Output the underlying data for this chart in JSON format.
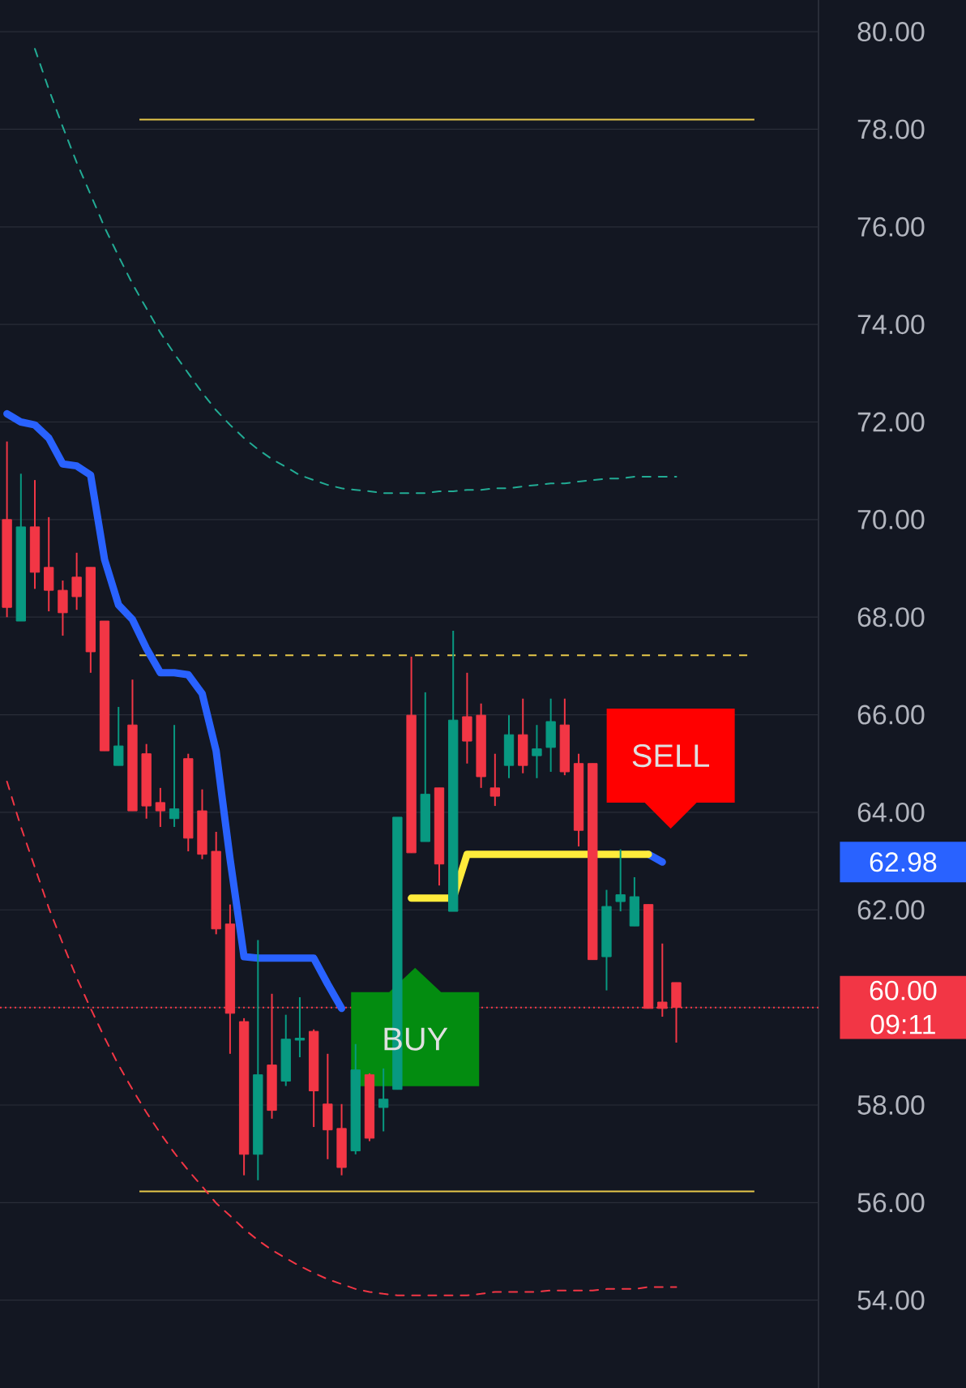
{
  "chart_data": {
    "type": "candlestick",
    "categories": [
      null,
      null,
      null,
      null,
      null,
      null,
      null,
      null,
      null,
      null,
      null,
      null,
      null,
      null,
      null,
      null,
      null,
      null,
      null,
      null,
      null,
      null,
      null,
      null,
      null,
      null,
      null,
      null,
      null,
      null,
      null,
      null,
      null,
      null,
      null,
      null,
      null,
      null,
      null,
      null,
      null,
      null,
      null,
      null,
      null,
      null,
      null,
      null,
      null
    ],
    "ohlc": [
      [
        70.0,
        71.6,
        68.0,
        68.2
      ],
      [
        67.92,
        70.94,
        67.92,
        69.85
      ],
      [
        69.85,
        70.81,
        68.58,
        68.92
      ],
      [
        69.02,
        70.05,
        68.12,
        68.55
      ],
      [
        68.55,
        68.75,
        67.62,
        68.09
      ],
      [
        68.82,
        69.32,
        68.15,
        68.42
      ],
      [
        69.02,
        69.02,
        66.86,
        67.29
      ],
      [
        67.92,
        67.92,
        65.26,
        65.26
      ],
      [
        64.96,
        66.16,
        64.96,
        65.36
      ],
      [
        65.79,
        66.72,
        64.03,
        64.03
      ],
      [
        65.2,
        65.4,
        63.87,
        64.13
      ],
      [
        64.2,
        64.5,
        63.7,
        64.03
      ],
      [
        63.87,
        65.79,
        63.7,
        64.07
      ],
      [
        65.1,
        65.2,
        63.2,
        63.47
      ],
      [
        64.03,
        64.47,
        63.04,
        63.14
      ],
      [
        63.2,
        63.6,
        61.5,
        61.61
      ],
      [
        61.71,
        62.11,
        59.05,
        59.88
      ],
      [
        59.71,
        59.78,
        56.56,
        56.99
      ],
      [
        56.99,
        61.38,
        56.46,
        58.62
      ],
      [
        58.82,
        60.28,
        57.72,
        57.89
      ],
      [
        58.49,
        59.85,
        58.39,
        59.35
      ],
      [
        59.33,
        60.21,
        58.98,
        59.37
      ],
      [
        59.51,
        59.55,
        57.55,
        58.29
      ],
      [
        58.02,
        59.05,
        56.89,
        57.49
      ],
      [
        57.52,
        58.02,
        56.56,
        56.72
      ],
      [
        57.06,
        59.25,
        56.99,
        58.72
      ],
      [
        58.62,
        58.65,
        57.26,
        57.32
      ],
      [
        57.95,
        58.75,
        57.46,
        58.12
      ],
      [
        58.32,
        63.9,
        58.32,
        63.9
      ],
      [
        65.99,
        67.19,
        63.17,
        63.17
      ],
      [
        63.4,
        66.46,
        63.4,
        64.37
      ],
      [
        64.5,
        64.5,
        62.5,
        62.94
      ],
      [
        61.97,
        67.72,
        61.97,
        65.89
      ],
      [
        65.96,
        66.86,
        65.0,
        65.46
      ],
      [
        65.99,
        66.23,
        64.5,
        64.73
      ],
      [
        64.5,
        65.2,
        64.13,
        64.33
      ],
      [
        64.96,
        65.99,
        64.7,
        65.59
      ],
      [
        65.59,
        66.33,
        64.8,
        64.96
      ],
      [
        65.16,
        65.79,
        64.7,
        65.3
      ],
      [
        65.33,
        66.33,
        64.83,
        65.86
      ],
      [
        65.79,
        66.33,
        64.76,
        64.83
      ],
      [
        65.0,
        65.2,
        63.3,
        63.63
      ],
      [
        65.0,
        65.0,
        60.98,
        60.98
      ],
      [
        61.04,
        62.41,
        60.35,
        62.07
      ],
      [
        62.17,
        63.24,
        61.97,
        62.31
      ],
      [
        61.67,
        62.67,
        61.67,
        62.27
      ],
      [
        62.11,
        62.11,
        59.98,
        59.98
      ],
      [
        60.11,
        61.31,
        59.81,
        59.98
      ],
      [
        60.51,
        60.51,
        59.28,
        60.0
      ]
    ],
    "colors": [
      "#f23645",
      "#089981",
      "#f23645",
      "#f23645",
      "#f23645",
      "#f23645",
      "#f23645",
      "#f23645",
      "#089981",
      "#f23645",
      "#f23645",
      "#f23645",
      "#089981",
      "#f23645",
      "#f23645",
      "#f23645",
      "#f23645",
      "#f23645",
      "#089981",
      "#f23645",
      "#089981",
      "#089981",
      "#f23645",
      "#f23645",
      "#f23645",
      "#089981",
      "#f23645",
      "#089981",
      "#089981",
      "#f23645",
      "#089981",
      "#f23645",
      "#089981",
      "#f23645",
      "#f23645",
      "#f23645",
      "#089981",
      "#f23645",
      "#089981",
      "#089981",
      "#f23645",
      "#f23645",
      "#f23645",
      "#089981",
      "#089981",
      "#089981",
      "#f23645",
      "#f23645",
      "#f23645"
    ],
    "series": [
      {
        "type": "line",
        "color": "#22ab94",
        "line_style": "dashed",
        "values": [
          null,
          null,
          79.65,
          78.82,
          78.05,
          77.32,
          76.66,
          75.99,
          75.4,
          74.83,
          74.33,
          73.83,
          73.4,
          73.0,
          72.6,
          72.24,
          71.94,
          71.67,
          71.44,
          71.24,
          71.08,
          70.91,
          70.81,
          70.71,
          70.64,
          70.61,
          70.58,
          70.54,
          70.54,
          70.54,
          70.54,
          70.58,
          70.58,
          70.61,
          70.61,
          70.64,
          70.64,
          70.68,
          70.71,
          70.74,
          70.74,
          70.78,
          70.81,
          70.84,
          70.84,
          70.88,
          70.88,
          70.88,
          70.88
        ]
      },
      {
        "type": "line",
        "color": "#f23645",
        "line_style": "dashed",
        "values": [
          64.63,
          63.7,
          62.87,
          62.04,
          61.31,
          60.61,
          59.98,
          59.38,
          58.82,
          58.32,
          57.85,
          57.42,
          57.02,
          56.66,
          56.33,
          55.99,
          55.73,
          55.46,
          55.23,
          55.03,
          54.86,
          54.7,
          54.56,
          54.43,
          54.33,
          54.23,
          54.17,
          54.13,
          54.1,
          54.1,
          54.1,
          54.1,
          54.1,
          54.1,
          54.13,
          54.17,
          54.17,
          54.17,
          54.17,
          54.2,
          54.2,
          54.2,
          54.2,
          54.23,
          54.23,
          54.23,
          54.27,
          54.27,
          54.27
        ]
      },
      {
        "type": "line",
        "color": "#2962ff",
        "line_style": "solid",
        "values": [
          72.17,
          72.0,
          71.94,
          71.67,
          71.14,
          71.1,
          70.91,
          69.18,
          68.25,
          67.95,
          67.36,
          66.86,
          66.86,
          66.82,
          66.43,
          65.26,
          63.04,
          61.04,
          61.01,
          61.01,
          61.01,
          61.01,
          61.01,
          60.48,
          59.98,
          null,
          null,
          null,
          null,
          null,
          null,
          null,
          null,
          null,
          null,
          null,
          null,
          null,
          null,
          null,
          null,
          null,
          null,
          null,
          null,
          null,
          63.14,
          62.98,
          null
        ]
      },
      {
        "type": "line",
        "color": "#ffeb3b",
        "line_style": "solid",
        "values": [
          null,
          null,
          null,
          null,
          null,
          null,
          null,
          null,
          null,
          null,
          null,
          null,
          null,
          null,
          null,
          null,
          null,
          null,
          null,
          null,
          null,
          null,
          null,
          null,
          null,
          null,
          null,
          null,
          null,
          62.24,
          62.24,
          62.24,
          62.24,
          63.14,
          63.14,
          63.14,
          63.14,
          63.14,
          63.14,
          63.14,
          63.14,
          63.14,
          63.14,
          63.14,
          63.14,
          63.14,
          63.14,
          null,
          null
        ]
      }
    ],
    "ylim": [
      52.2,
      80.65
    ],
    "yticks": [
      {
        "value": 54,
        "label": "54.00"
      },
      {
        "value": 56,
        "label": "56.00"
      },
      {
        "value": 58,
        "label": "58.00"
      },
      {
        "value": 60,
        "label": null
      },
      {
        "value": 62,
        "label": "62.00"
      },
      {
        "value": 64,
        "label": "64.00"
      },
      {
        "value": 66,
        "label": "66.00"
      },
      {
        "value": 68,
        "label": "68.00"
      },
      {
        "value": 70,
        "label": "70.00"
      },
      {
        "value": 72,
        "label": "72.00"
      },
      {
        "value": 74,
        "label": "74.00"
      },
      {
        "value": 76,
        "label": "76.00"
      },
      {
        "value": 78,
        "label": "78.00"
      },
      {
        "value": 80,
        "label": "80.00"
      }
    ],
    "grid": "y",
    "ref_lines": [
      {
        "axis": "y",
        "value": 78.2,
        "color": "#e6c84a",
        "line_style": "solid"
      },
      {
        "axis": "y",
        "value": 67.22,
        "color": "#e6c84a",
        "line_style": "dashed"
      },
      {
        "axis": "y",
        "value": 56.23,
        "color": "#e6c84a",
        "line_style": "solid"
      },
      {
        "axis": "y",
        "value": 60,
        "label": "60.00 09:11",
        "color": "#f23645",
        "line_style": "dotted"
      }
    ],
    "annotations": [
      "BUY",
      "SELL",
      "62.98"
    ]
  }
}
